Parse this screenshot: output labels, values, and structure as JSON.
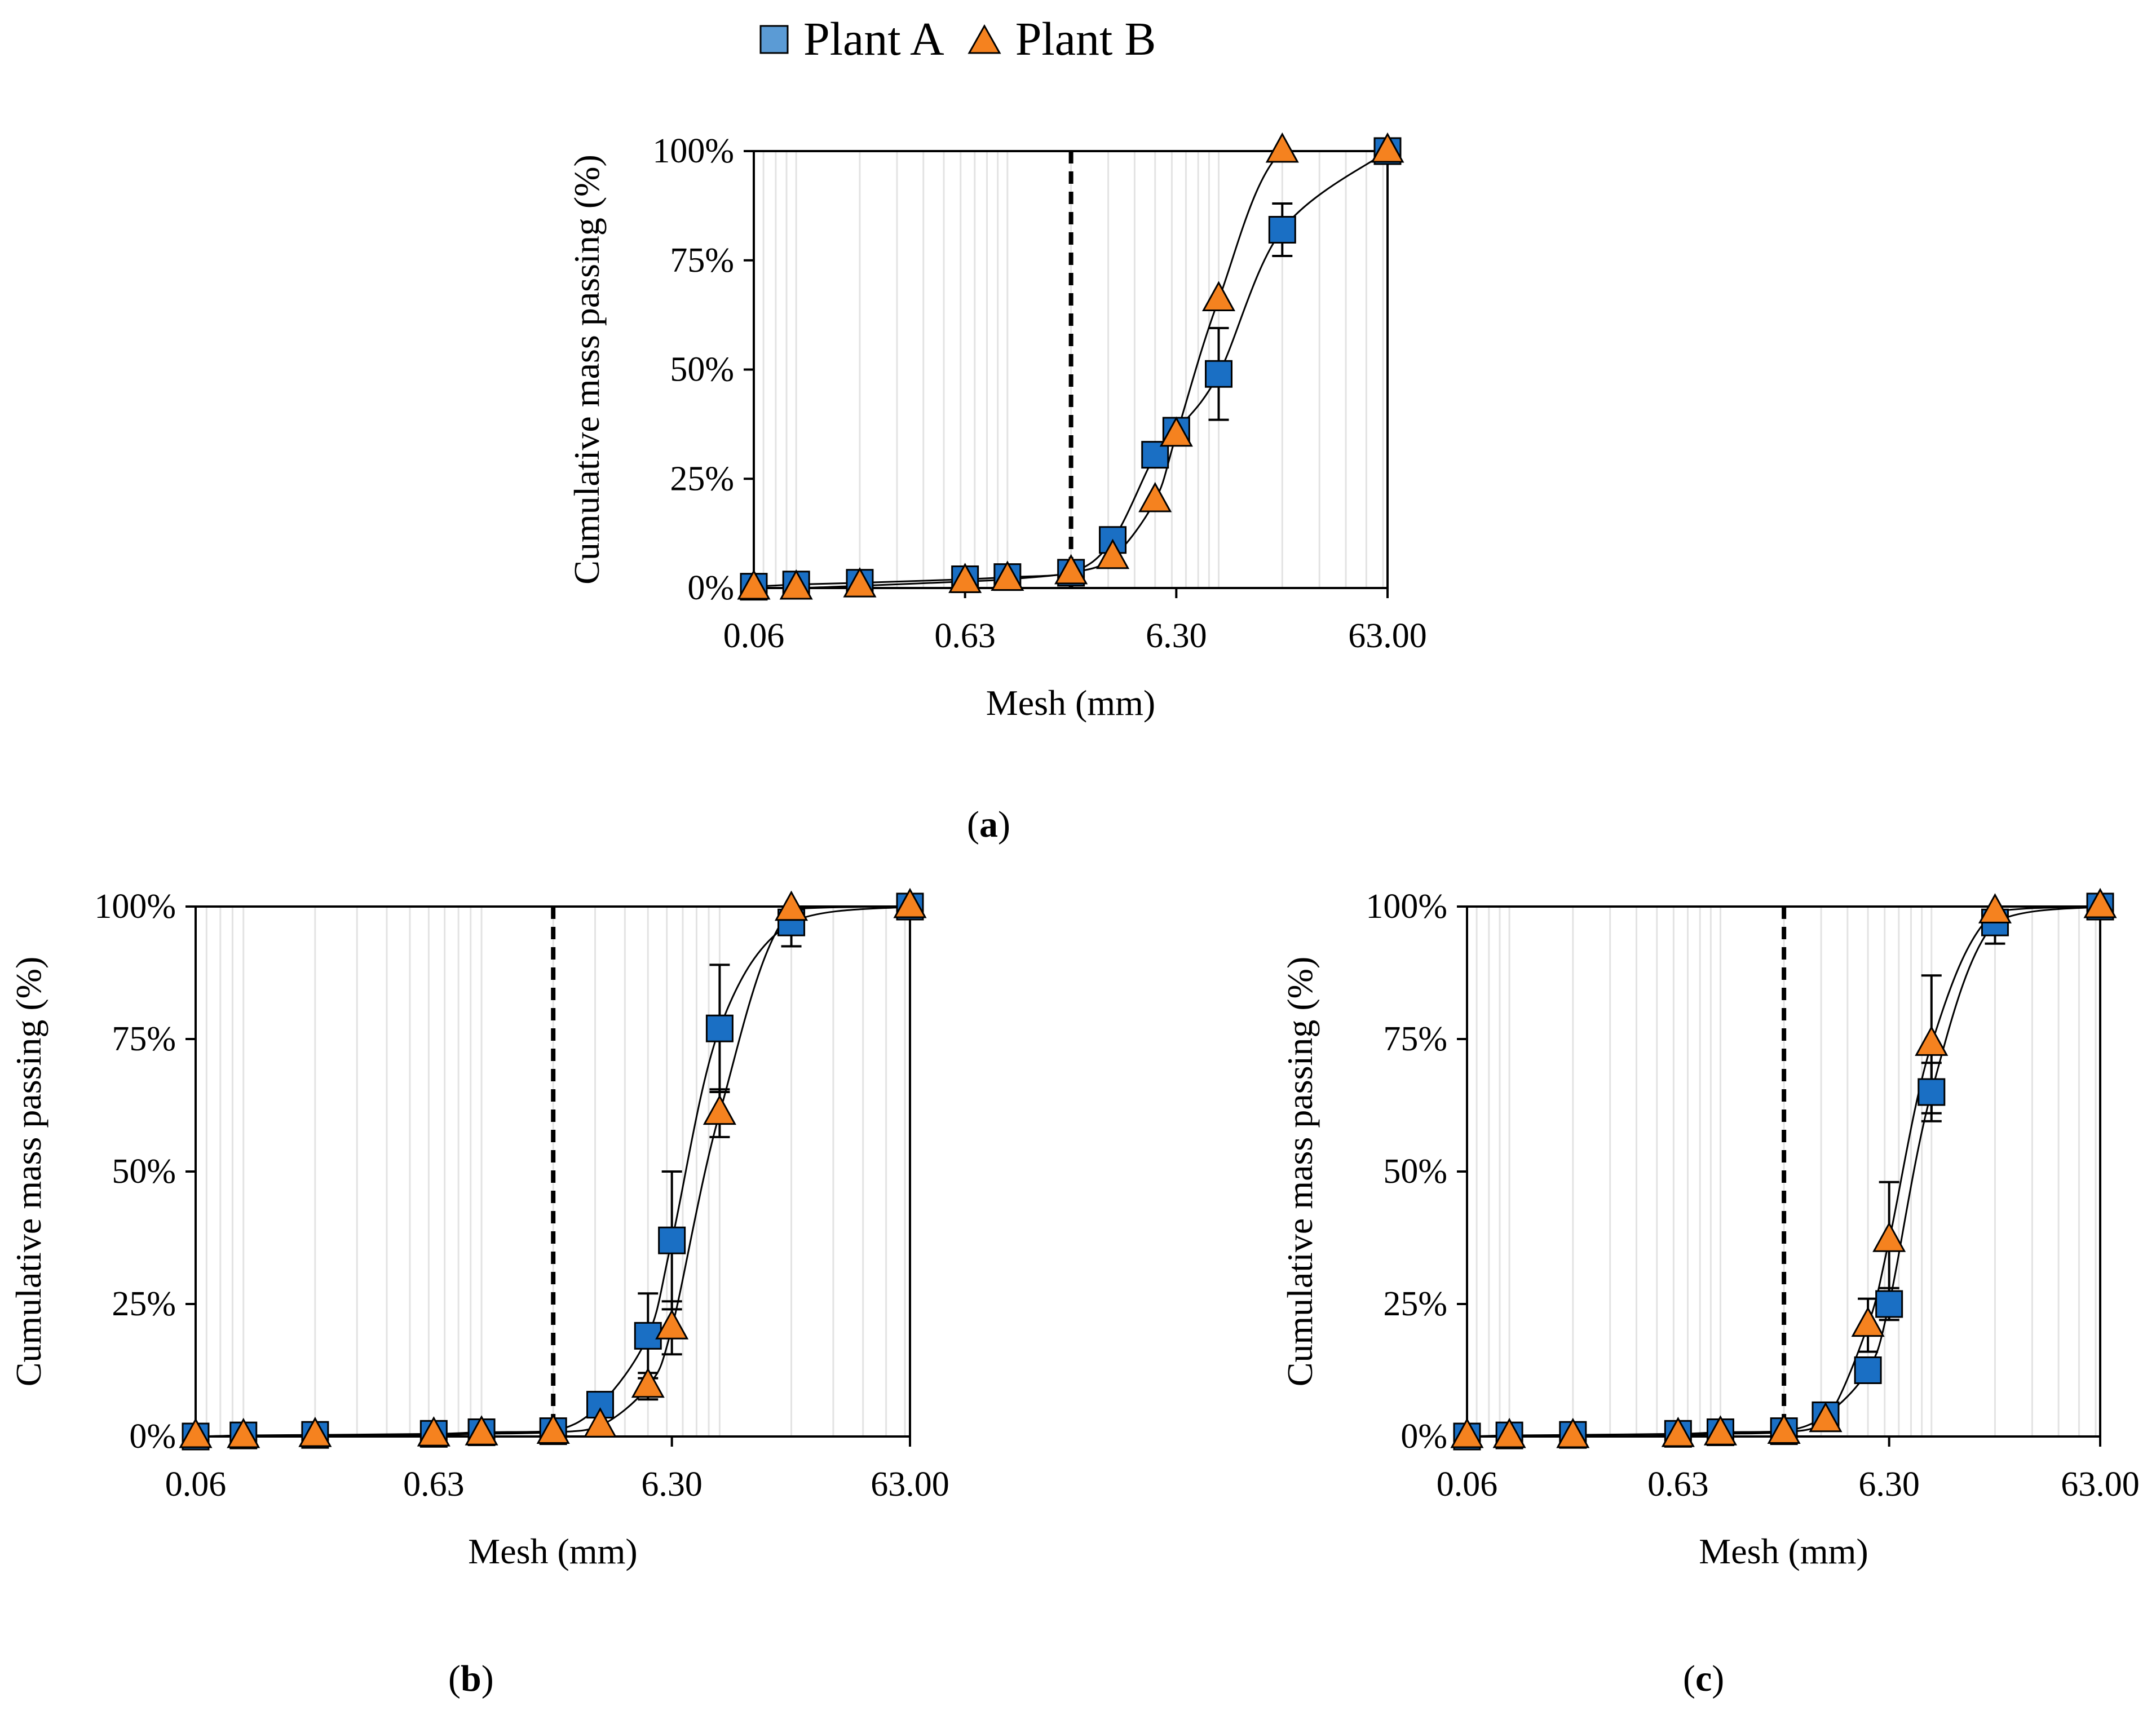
{
  "legend": {
    "series": [
      {
        "name": "Plant A",
        "marker": "square",
        "color": "#1a6fc4",
        "legend_color": "#5b9bd5"
      },
      {
        "name": "Plant B",
        "marker": "triangle",
        "color": "#f5821f",
        "legend_color": "#f5821f"
      }
    ]
  },
  "panel_labels": {
    "a": "a",
    "b": "b",
    "c": "c"
  },
  "chart_data": [
    {
      "panel": "a",
      "type": "scatter",
      "xscale": "log",
      "xlabel": "Mesh (mm)",
      "ylabel": "Cumulative mass passing (%)",
      "xlim": [
        0.063,
        63
      ],
      "ylim": [
        0,
        100
      ],
      "xticks": [
        0.063,
        0.63,
        6.3,
        63
      ],
      "xtick_labels": [
        "0.06",
        "0.63",
        "6.30",
        "63.00"
      ],
      "yticks": [
        0,
        25,
        50,
        75,
        100
      ],
      "ytick_labels": [
        "0%",
        "25%",
        "50%",
        "75%",
        "100%"
      ],
      "vertical_dashed_line_x": 2,
      "series": [
        {
          "name": "Plant A",
          "x": [
            0.063,
            0.1,
            0.2,
            0.63,
            1,
            2,
            3.15,
            5,
            6.3,
            10,
            20,
            63
          ],
          "y": [
            0.3,
            0.8,
            1.2,
            2,
            2.5,
            3.5,
            11,
            30.5,
            36,
            49,
            82,
            100
          ],
          "err": [
            0,
            0,
            0,
            0,
            0,
            0,
            0,
            0,
            0,
            10.5,
            6,
            0
          ]
        },
        {
          "name": "Plant B",
          "x": [
            0.063,
            0.1,
            0.2,
            0.63,
            1,
            2,
            3.15,
            5,
            6.3,
            10,
            20,
            63
          ],
          "y": [
            0,
            0,
            0.5,
            1.5,
            2,
            3.5,
            7,
            20,
            35,
            66,
            100,
            100
          ],
          "err": [
            0,
            0,
            0,
            0,
            0,
            0,
            0,
            0,
            0,
            0,
            0,
            0
          ]
        }
      ]
    },
    {
      "panel": "b",
      "type": "scatter",
      "xscale": "log",
      "xlabel": "Mesh (mm)",
      "ylabel": "Cumulative mass passing (%)",
      "xlim": [
        0.063,
        63
      ],
      "ylim": [
        0,
        100
      ],
      "xticks": [
        0.063,
        0.63,
        6.3,
        63
      ],
      "xtick_labels": [
        "0.06",
        "0.63",
        "6.30",
        "63.00"
      ],
      "yticks": [
        0,
        25,
        50,
        75,
        100
      ],
      "ytick_labels": [
        "0%",
        "25%",
        "50%",
        "75%",
        "100%"
      ],
      "vertical_dashed_line_x": 2,
      "series": [
        {
          "name": "Plant A",
          "x": [
            0.063,
            0.1,
            0.2,
            0.63,
            1,
            2,
            3.15,
            5,
            6.3,
            10,
            20,
            63
          ],
          "y": [
            0,
            0.2,
            0.3,
            0.5,
            0.8,
            1,
            6,
            19,
            37,
            77,
            97,
            100
          ],
          "err": [
            0,
            0,
            0,
            0,
            0,
            0,
            0,
            8,
            13,
            12,
            4.5,
            0
          ]
        },
        {
          "name": "Plant B",
          "x": [
            0.063,
            0.1,
            0.2,
            0.63,
            1,
            2,
            3.15,
            5,
            6.3,
            10,
            20,
            63
          ],
          "y": [
            0,
            0,
            0.2,
            0.3,
            0.5,
            0.8,
            2,
            9.5,
            20.5,
            61,
            99.5,
            100
          ],
          "err": [
            0,
            0,
            0,
            0,
            0,
            0,
            0,
            2.5,
            5,
            4.5,
            0,
            0
          ]
        }
      ]
    },
    {
      "panel": "c",
      "type": "scatter",
      "xscale": "log",
      "xlabel": "Mesh (mm)",
      "ylabel": "Cumulative mass passing (%)",
      "xlim": [
        0.063,
        63
      ],
      "ylim": [
        0,
        100
      ],
      "xticks": [
        0.063,
        0.63,
        6.3,
        63
      ],
      "xtick_labels": [
        "0.06",
        "0.63",
        "6.30",
        "63.00"
      ],
      "yticks": [
        0,
        25,
        50,
        75,
        100
      ],
      "ytick_labels": [
        "0%",
        "25%",
        "50%",
        "75%",
        "100%"
      ],
      "vertical_dashed_line_x": 2,
      "series": [
        {
          "name": "Plant A",
          "x": [
            0.063,
            0.1,
            0.2,
            0.63,
            1,
            2,
            3.15,
            5,
            6.3,
            10,
            20,
            63
          ],
          "y": [
            0,
            0.2,
            0.3,
            0.5,
            0.8,
            1,
            4,
            12.5,
            25,
            65,
            97,
            100
          ],
          "err": [
            0,
            0,
            0,
            0,
            0,
            0,
            0,
            0,
            3,
            5.5,
            4,
            0
          ]
        },
        {
          "name": "Plant B",
          "x": [
            0.063,
            0.1,
            0.2,
            0.63,
            1,
            2,
            3.15,
            5,
            6.3,
            10,
            20,
            63
          ],
          "y": [
            0,
            0,
            0,
            0.2,
            0.5,
            0.8,
            3,
            21,
            37,
            74,
            99,
            100
          ],
          "err": [
            0,
            0,
            0,
            0,
            0,
            0,
            0,
            5,
            11,
            13,
            0,
            0
          ]
        }
      ]
    }
  ]
}
